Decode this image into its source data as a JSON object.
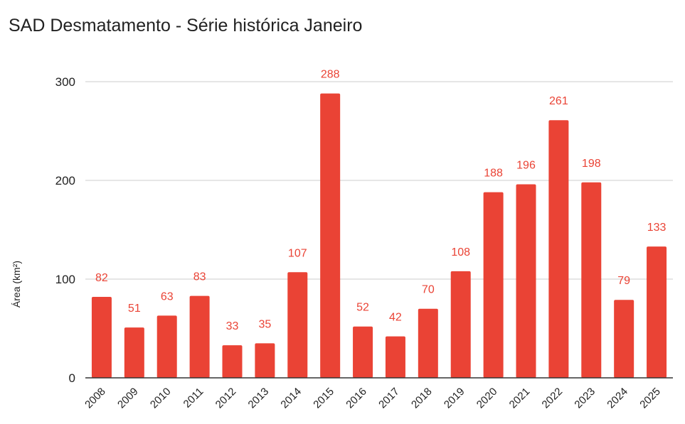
{
  "chart_data": {
    "type": "bar",
    "title": "SAD Desmatamento - Série histórica Janeiro",
    "xlabel": "",
    "ylabel": "Área (km²)",
    "categories": [
      "2008",
      "2009",
      "2010",
      "2011",
      "2012",
      "2013",
      "2014",
      "2015",
      "2016",
      "2017",
      "2018",
      "2019",
      "2020",
      "2021",
      "2022",
      "2023",
      "2024",
      "2025"
    ],
    "values": [
      82,
      51,
      63,
      83,
      33,
      35,
      107,
      288,
      52,
      42,
      70,
      108,
      188,
      196,
      261,
      198,
      79,
      133
    ],
    "ylim": [
      0,
      300
    ],
    "yticks": [
      0,
      100,
      200,
      300
    ],
    "grid": true,
    "legend": "none",
    "bar_color": "#ea4335",
    "label_color": "#ea4335"
  }
}
